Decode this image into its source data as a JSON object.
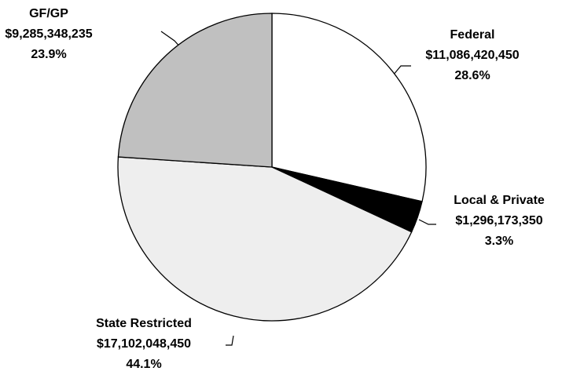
{
  "chart_data": {
    "type": "pie",
    "categories": [
      "Federal",
      "Local & Private",
      "State Restricted",
      "GF/GP"
    ],
    "values": [
      11086420450,
      1296173350,
      17102048450,
      9285348235
    ],
    "value_labels": [
      "$11,086,420,450",
      "$1,296,173,350",
      "$17,102,048,450",
      "$9,285,348,235"
    ],
    "percent_labels": [
      "28.6%",
      "3.3%",
      "44.1%",
      "23.9%"
    ],
    "colors": [
      "#ffffff",
      "#000000",
      "#eeeeee",
      "#c0c0c0"
    ]
  }
}
